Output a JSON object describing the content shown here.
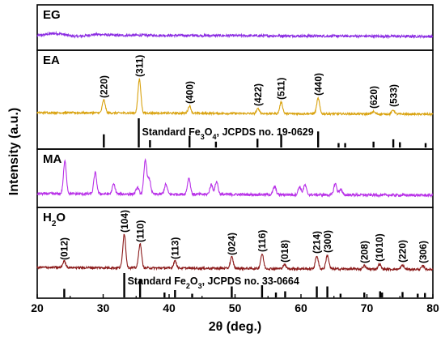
{
  "chart_data": {
    "type": "line",
    "xlabel": "2θ (deg.)",
    "ylabel": "Intensity (a.u.)",
    "xlim": [
      20,
      80
    ],
    "xticks": [
      20,
      30,
      40,
      50,
      60,
      70,
      80
    ],
    "panels": [
      {
        "name": "EG",
        "color": "#8a2be2",
        "noise": 1.5,
        "base": 4,
        "peaks": []
      },
      {
        "name": "EA",
        "color": "#d9a20e",
        "noise": 1.2,
        "base": 4,
        "peaks": [
          {
            "x": 30.1,
            "h": 16,
            "label": "(220)"
          },
          {
            "x": 35.5,
            "h": 42,
            "label": "(311)"
          },
          {
            "x": 43.1,
            "h": 9,
            "label": "(400)"
          },
          {
            "x": 53.5,
            "h": 6,
            "label": "(422)"
          },
          {
            "x": 57.0,
            "h": 14,
            "label": "(511)"
          },
          {
            "x": 62.6,
            "h": 19,
            "label": "(440)"
          },
          {
            "x": 71.0,
            "h": 3,
            "label": "(620)"
          },
          {
            "x": 74.0,
            "h": 5,
            "label": "(533)"
          }
        ],
        "reference": {
          "label_prefix": "Standard Fe",
          "sub1": "3",
          "mid": "O",
          "sub2": "4",
          "label_suffix": ", JCPDS no. 19-0629",
          "lines": [
            {
              "x": 30.1,
              "h": 0.45
            },
            {
              "x": 35.4,
              "h": 1.0
            },
            {
              "x": 37.1,
              "h": 0.25
            },
            {
              "x": 43.1,
              "h": 0.4
            },
            {
              "x": 47.1,
              "h": 0.2
            },
            {
              "x": 53.4,
              "h": 0.3
            },
            {
              "x": 57.0,
              "h": 0.45
            },
            {
              "x": 62.6,
              "h": 0.55
            },
            {
              "x": 65.7,
              "h": 0.15
            },
            {
              "x": 66.7,
              "h": 0.15
            },
            {
              "x": 71.0,
              "h": 0.2
            },
            {
              "x": 74.0,
              "h": 0.28
            },
            {
              "x": 75.0,
              "h": 0.18
            },
            {
              "x": 78.9,
              "h": 0.15
            }
          ]
        }
      },
      {
        "name": "MA",
        "color": "#b830e8",
        "noise": 1.6,
        "base": 4,
        "peaks": [
          {
            "x": 24.2,
            "h": 40
          },
          {
            "x": 28.8,
            "h": 26
          },
          {
            "x": 31.6,
            "h": 12
          },
          {
            "x": 35.2,
            "h": 8
          },
          {
            "x": 36.4,
            "h": 42
          },
          {
            "x": 37.0,
            "h": 18
          },
          {
            "x": 39.5,
            "h": 12
          },
          {
            "x": 43.0,
            "h": 20
          },
          {
            "x": 46.4,
            "h": 12
          },
          {
            "x": 47.2,
            "h": 16
          },
          {
            "x": 56.0,
            "h": 10
          },
          {
            "x": 59.8,
            "h": 10
          },
          {
            "x": 60.6,
            "h": 12
          },
          {
            "x": 65.2,
            "h": 14
          },
          {
            "x": 66.0,
            "h": 7
          }
        ]
      },
      {
        "name": "H",
        "name_sub": "2",
        "name_tail": "O",
        "color": "#8b1a1a",
        "noise": 1.4,
        "base": 5,
        "peaks": [
          {
            "x": 24.1,
            "h": 8,
            "label": "(012)"
          },
          {
            "x": 33.2,
            "h": 42,
            "label": "(104)"
          },
          {
            "x": 35.6,
            "h": 30,
            "label": "(110)"
          },
          {
            "x": 40.9,
            "h": 9,
            "label": "(113)"
          },
          {
            "x": 49.5,
            "h": 14,
            "label": "(024)"
          },
          {
            "x": 54.1,
            "h": 18,
            "label": "(116)"
          },
          {
            "x": 57.5,
            "h": 5,
            "label": "(018)"
          },
          {
            "x": 62.4,
            "h": 16,
            "label": "(214)"
          },
          {
            "x": 64.0,
            "h": 17,
            "label": "(300)"
          },
          {
            "x": 69.6,
            "h": 4,
            "label": "(208)"
          },
          {
            "x": 71.9,
            "h": 6,
            "label": "(1010)"
          },
          {
            "x": 75.4,
            "h": 5,
            "label": "(220)"
          },
          {
            "x": 78.5,
            "h": 4,
            "label": "(306)"
          }
        ],
        "reference": {
          "label_prefix": "Standard Fe",
          "sub1": "2",
          "mid": "O",
          "sub2": "3",
          "label_suffix": ", JCPDS no. 33-0664",
          "lines": [
            {
              "x": 24.1,
              "h": 0.35
            },
            {
              "x": 33.2,
              "h": 1.0
            },
            {
              "x": 35.6,
              "h": 0.75
            },
            {
              "x": 39.3,
              "h": 0.2
            },
            {
              "x": 40.9,
              "h": 0.3
            },
            {
              "x": 43.5,
              "h": 0.15
            },
            {
              "x": 49.5,
              "h": 0.45
            },
            {
              "x": 54.1,
              "h": 0.5
            },
            {
              "x": 56.2,
              "h": 0.2
            },
            {
              "x": 57.6,
              "h": 0.25
            },
            {
              "x": 62.4,
              "h": 0.45
            },
            {
              "x": 64.0,
              "h": 0.45
            },
            {
              "x": 66.0,
              "h": 0.15
            },
            {
              "x": 69.6,
              "h": 0.2
            },
            {
              "x": 72.0,
              "h": 0.25
            },
            {
              "x": 72.3,
              "h": 0.2
            },
            {
              "x": 75.4,
              "h": 0.22
            },
            {
              "x": 77.7,
              "h": 0.15
            },
            {
              "x": 78.8,
              "h": 0.18
            }
          ]
        }
      }
    ]
  }
}
